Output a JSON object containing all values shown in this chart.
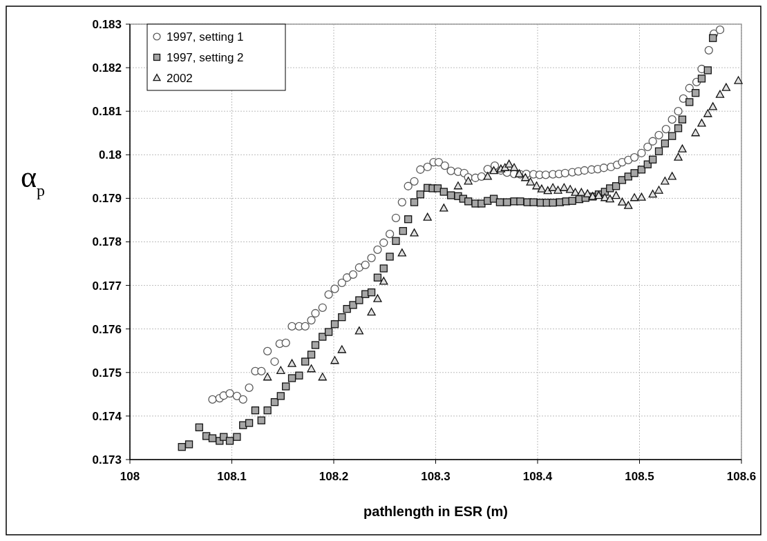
{
  "chart_data": {
    "type": "scatter",
    "xlabel": "pathlength in ESR (m)",
    "ylabel": "α$_{p}$",
    "xlim": [
      108,
      108.6
    ],
    "xticks": [
      108,
      108.1,
      108.2,
      108.3,
      108.4,
      108.5,
      108.6
    ],
    "ylim": [
      0.173,
      0.183
    ],
    "yticks": [
      0.173,
      0.174,
      0.175,
      0.176,
      0.177,
      0.178,
      0.179,
      0.18,
      0.181,
      0.182,
      0.183
    ],
    "grid": true,
    "legend": "top left",
    "series": [
      {
        "name": "1997, setting 1",
        "color": "#595959",
        "marker": "circle",
        "x": [
          108.081,
          108.088,
          108.092,
          108.098,
          108.105,
          108.111,
          108.117,
          108.123,
          108.129,
          108.135,
          108.142,
          108.147,
          108.153,
          108.159,
          108.166,
          108.172,
          108.178,
          108.182,
          108.189,
          108.195,
          108.201,
          108.208,
          108.213,
          108.219,
          108.225,
          108.231,
          108.237,
          108.243,
          108.249,
          108.255,
          108.261,
          108.267,
          108.273,
          108.279,
          108.285,
          108.292,
          108.298,
          108.303,
          108.309,
          108.315,
          108.322,
          108.328,
          108.332,
          108.339,
          108.345,
          108.351,
          108.358,
          108.364,
          108.37,
          108.377,
          108.383,
          108.389,
          108.396,
          108.402,
          108.408,
          108.415,
          108.421,
          108.427,
          108.434,
          108.44,
          108.446,
          108.453,
          108.459,
          108.465,
          108.472,
          108.478,
          108.483,
          108.489,
          108.495,
          108.502,
          108.508,
          108.513,
          108.519,
          108.526,
          108.532,
          108.538,
          108.543,
          108.549,
          108.556,
          108.561,
          108.568,
          108.573,
          108.579
        ],
        "values": [
          0.17438,
          0.17441,
          0.17447,
          0.17452,
          0.17446,
          0.17438,
          0.17465,
          0.17503,
          0.17503,
          0.17549,
          0.17525,
          0.17566,
          0.17568,
          0.17606,
          0.17606,
          0.17606,
          0.1762,
          0.17636,
          0.17649,
          0.17679,
          0.17692,
          0.17706,
          0.17718,
          0.17725,
          0.17741,
          0.17747,
          0.17763,
          0.17782,
          0.17798,
          0.17818,
          0.17855,
          0.17891,
          0.17928,
          0.17939,
          0.17966,
          0.17972,
          0.17983,
          0.17983,
          0.17975,
          0.17963,
          0.17961,
          0.17958,
          0.17948,
          0.17947,
          0.1795,
          0.17967,
          0.17975,
          0.17964,
          0.17959,
          0.17956,
          0.17955,
          0.17956,
          0.17955,
          0.17954,
          0.17954,
          0.17955,
          0.17956,
          0.17958,
          0.1796,
          0.17962,
          0.17964,
          0.17966,
          0.17967,
          0.1797,
          0.17972,
          0.17977,
          0.17983,
          0.17988,
          0.17994,
          0.18004,
          0.18018,
          0.18031,
          0.18045,
          0.18059,
          0.18081,
          0.181,
          0.18129,
          0.18153,
          0.18167,
          0.18197,
          0.1824,
          0.18278,
          0.18287
        ]
      },
      {
        "name": "1997, setting 2",
        "color": "#a6a6a6",
        "marker": "square",
        "x": [
          108.051,
          108.058,
          108.068,
          108.075,
          108.081,
          108.088,
          108.092,
          108.098,
          108.105,
          108.111,
          108.117,
          108.123,
          108.129,
          108.135,
          108.142,
          108.148,
          108.153,
          108.159,
          108.166,
          108.172,
          108.178,
          108.182,
          108.189,
          108.195,
          108.201,
          108.208,
          108.213,
          108.219,
          108.225,
          108.231,
          108.237,
          108.243,
          108.249,
          108.255,
          108.261,
          108.268,
          108.273,
          108.279,
          108.285,
          108.292,
          108.297,
          108.302,
          108.308,
          108.315,
          108.322,
          108.327,
          108.332,
          108.339,
          108.345,
          108.351,
          108.357,
          108.363,
          108.37,
          108.377,
          108.383,
          108.39,
          108.396,
          108.403,
          108.409,
          108.415,
          108.422,
          108.428,
          108.434,
          108.441,
          108.447,
          108.454,
          108.46,
          108.466,
          108.471,
          108.477,
          108.483,
          108.489,
          108.495,
          108.502,
          108.508,
          108.513,
          108.519,
          108.525,
          108.532,
          108.538,
          108.542,
          108.549,
          108.555,
          108.561,
          108.567,
          108.572
        ],
        "values": [
          0.17329,
          0.17335,
          0.17374,
          0.17354,
          0.17349,
          0.17343,
          0.17352,
          0.17343,
          0.17352,
          0.17379,
          0.17384,
          0.17413,
          0.1739,
          0.17413,
          0.17432,
          0.17446,
          0.17468,
          0.17487,
          0.17493,
          0.17525,
          0.17541,
          0.17563,
          0.17582,
          0.17593,
          0.17611,
          0.17627,
          0.17646,
          0.17655,
          0.17666,
          0.1768,
          0.17684,
          0.17718,
          0.17739,
          0.17766,
          0.17802,
          0.17825,
          0.17852,
          0.17891,
          0.17909,
          0.17924,
          0.17923,
          0.17923,
          0.17915,
          0.17907,
          0.17905,
          0.17899,
          0.17893,
          0.17888,
          0.17888,
          0.17894,
          0.17899,
          0.17891,
          0.17891,
          0.17893,
          0.17893,
          0.17891,
          0.17891,
          0.1789,
          0.1789,
          0.1789,
          0.17891,
          0.17893,
          0.17894,
          0.17898,
          0.17901,
          0.17904,
          0.17909,
          0.17915,
          0.17923,
          0.17928,
          0.17942,
          0.1795,
          0.17958,
          0.17966,
          0.17978,
          0.17989,
          0.18008,
          0.18026,
          0.18043,
          0.18061,
          0.18081,
          0.18121,
          0.18142,
          0.18175,
          0.18194,
          0.18268
        ]
      },
      {
        "name": "2002",
        "color": "#e0e0e0",
        "marker": "triangle",
        "x": [
          108.135,
          108.148,
          108.159,
          108.178,
          108.189,
          108.201,
          108.208,
          108.225,
          108.237,
          108.243,
          108.249,
          108.267,
          108.279,
          108.292,
          108.308,
          108.322,
          108.332,
          108.351,
          108.357,
          108.364,
          108.368,
          108.372,
          108.377,
          108.382,
          108.388,
          108.393,
          108.399,
          108.404,
          108.41,
          108.415,
          108.42,
          108.426,
          108.432,
          108.437,
          108.443,
          108.449,
          108.454,
          108.46,
          108.466,
          108.471,
          108.477,
          108.483,
          108.489,
          108.495,
          108.502,
          108.513,
          108.519,
          108.525,
          108.532,
          108.538,
          108.542,
          108.555,
          108.561,
          108.567,
          108.572,
          108.579,
          108.585,
          108.597
        ],
        "values": [
          0.17489,
          0.17504,
          0.1752,
          0.17508,
          0.17489,
          0.17527,
          0.17552,
          0.17595,
          0.17638,
          0.17669,
          0.17709,
          0.17774,
          0.1782,
          0.17856,
          0.17877,
          0.17928,
          0.17939,
          0.1795,
          0.17963,
          0.17967,
          0.1797,
          0.17978,
          0.1797,
          0.17956,
          0.17947,
          0.17937,
          0.17928,
          0.17921,
          0.17917,
          0.17924,
          0.17918,
          0.17924,
          0.1792,
          0.17913,
          0.17913,
          0.1791,
          0.17904,
          0.17906,
          0.17901,
          0.17898,
          0.17906,
          0.17891,
          0.17883,
          0.17901,
          0.17902,
          0.17909,
          0.17918,
          0.17939,
          0.1795,
          0.17994,
          0.18013,
          0.1805,
          0.18072,
          0.18094,
          0.1811,
          0.18138,
          0.18154,
          0.1817
        ]
      }
    ]
  }
}
